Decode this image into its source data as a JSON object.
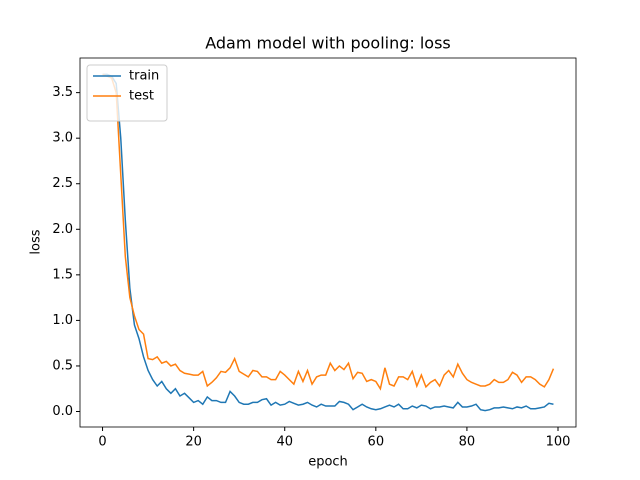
{
  "chart_data": {
    "type": "line",
    "title": "Adam model with pooling: loss",
    "x_label": "epoch",
    "y_label": "loss",
    "x": [
      0,
      1,
      2,
      3,
      4,
      5,
      6,
      7,
      8,
      9,
      10,
      11,
      12,
      13,
      14,
      15,
      16,
      17,
      18,
      19,
      20,
      21,
      22,
      23,
      24,
      25,
      26,
      27,
      28,
      29,
      30,
      31,
      32,
      33,
      34,
      35,
      36,
      37,
      38,
      39,
      40,
      41,
      42,
      43,
      44,
      45,
      46,
      47,
      48,
      49,
      50,
      51,
      52,
      53,
      54,
      55,
      56,
      57,
      58,
      59,
      60,
      61,
      62,
      63,
      64,
      65,
      66,
      67,
      68,
      69,
      70,
      71,
      72,
      73,
      74,
      75,
      76,
      77,
      78,
      79,
      80,
      81,
      82,
      83,
      84,
      85,
      86,
      87,
      88,
      89,
      90,
      91,
      92,
      93,
      94,
      95,
      96,
      97,
      98,
      99
    ],
    "series": [
      {
        "name": "train",
        "color": "#1f77b4",
        "values": [
          3.7,
          3.7,
          3.68,
          3.6,
          3.0,
          2.1,
          1.35,
          0.95,
          0.8,
          0.6,
          0.45,
          0.35,
          0.28,
          0.33,
          0.25,
          0.2,
          0.25,
          0.17,
          0.2,
          0.15,
          0.1,
          0.12,
          0.08,
          0.16,
          0.12,
          0.12,
          0.1,
          0.1,
          0.22,
          0.17,
          0.1,
          0.08,
          0.08,
          0.1,
          0.1,
          0.13,
          0.14,
          0.07,
          0.1,
          0.07,
          0.08,
          0.11,
          0.09,
          0.07,
          0.08,
          0.1,
          0.07,
          0.05,
          0.08,
          0.06,
          0.06,
          0.06,
          0.11,
          0.1,
          0.08,
          0.02,
          0.05,
          0.08,
          0.05,
          0.03,
          0.02,
          0.03,
          0.05,
          0.07,
          0.05,
          0.08,
          0.03,
          0.03,
          0.06,
          0.04,
          0.07,
          0.06,
          0.03,
          0.05,
          0.05,
          0.06,
          0.05,
          0.04,
          0.1,
          0.05,
          0.05,
          0.06,
          0.08,
          0.02,
          0.01,
          0.02,
          0.04,
          0.04,
          0.05,
          0.04,
          0.03,
          0.05,
          0.04,
          0.06,
          0.03,
          0.03,
          0.04,
          0.05,
          0.09,
          0.08
        ]
      },
      {
        "name": "test",
        "color": "#ff7f0e",
        "values": [
          3.7,
          3.68,
          3.66,
          3.5,
          2.6,
          1.7,
          1.25,
          1.05,
          0.9,
          0.85,
          0.58,
          0.57,
          0.6,
          0.53,
          0.55,
          0.5,
          0.52,
          0.45,
          0.42,
          0.41,
          0.4,
          0.4,
          0.44,
          0.28,
          0.32,
          0.37,
          0.44,
          0.43,
          0.48,
          0.58,
          0.44,
          0.41,
          0.38,
          0.45,
          0.44,
          0.38,
          0.38,
          0.35,
          0.35,
          0.44,
          0.4,
          0.35,
          0.3,
          0.44,
          0.33,
          0.45,
          0.3,
          0.38,
          0.4,
          0.4,
          0.53,
          0.45,
          0.5,
          0.46,
          0.53,
          0.36,
          0.43,
          0.42,
          0.33,
          0.35,
          0.33,
          0.25,
          0.48,
          0.3,
          0.28,
          0.38,
          0.38,
          0.35,
          0.44,
          0.28,
          0.4,
          0.27,
          0.32,
          0.35,
          0.28,
          0.4,
          0.45,
          0.38,
          0.52,
          0.42,
          0.35,
          0.32,
          0.3,
          0.28,
          0.28,
          0.3,
          0.35,
          0.32,
          0.32,
          0.35,
          0.43,
          0.4,
          0.32,
          0.38,
          0.38,
          0.35,
          0.3,
          0.27,
          0.35,
          0.47
        ]
      }
    ],
    "xlim": [
      -4.95,
      103.95
    ],
    "xticks": [
      0,
      20,
      40,
      60,
      80,
      100
    ],
    "ylim": [
      -0.17,
      3.88
    ],
    "yticks": [
      {
        "value": 0,
        "label": "0.0"
      },
      0.5,
      {
        "value": 1,
        "label": "1.0"
      },
      1.5,
      {
        "value": 2,
        "label": "2.0"
      },
      2.5,
      {
        "value": 3,
        "label": "3.0"
      },
      3.5
    ],
    "legend": "upper left",
    "grid": false
  }
}
